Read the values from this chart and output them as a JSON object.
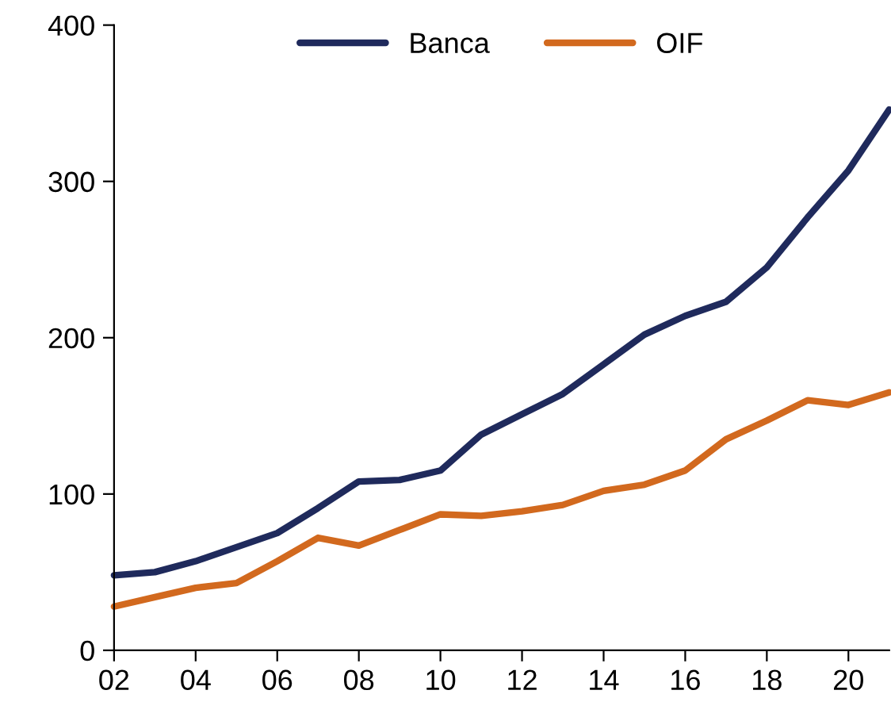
{
  "chart_data": {
    "type": "line",
    "x": [
      2002,
      2003,
      2004,
      2005,
      2006,
      2007,
      2008,
      2009,
      2010,
      2011,
      2012,
      2013,
      2014,
      2015,
      2016,
      2017,
      2018,
      2019,
      2020,
      2021
    ],
    "series": [
      {
        "name": "Banca",
        "color": "#1f2a5c",
        "values": [
          48,
          50,
          57,
          66,
          75,
          91,
          108,
          109,
          115,
          138,
          151,
          164,
          183,
          202,
          214,
          223,
          245,
          277,
          307,
          346
        ]
      },
      {
        "name": "OIF",
        "color": "#d2691e",
        "values": [
          28,
          34,
          40,
          43,
          57,
          72,
          67,
          77,
          87,
          86,
          89,
          93,
          102,
          106,
          115,
          135,
          147,
          160,
          157,
          165
        ]
      }
    ],
    "xlim": [
      2002,
      2021
    ],
    "xticks": [
      {
        "value": 2002,
        "label": "02"
      },
      {
        "value": 2004,
        "label": "04"
      },
      {
        "value": 2006,
        "label": "06"
      },
      {
        "value": 2008,
        "label": "08"
      },
      {
        "value": 2010,
        "label": "10"
      },
      {
        "value": 2012,
        "label": "12"
      },
      {
        "value": 2014,
        "label": "14"
      },
      {
        "value": 2016,
        "label": "16"
      },
      {
        "value": 2018,
        "label": "18"
      },
      {
        "value": 2020,
        "label": "20"
      }
    ],
    "ylim": [
      0,
      400
    ],
    "yticks": [
      0,
      100,
      200,
      300,
      400
    ],
    "legend": "top",
    "grid": false,
    "marker": "none",
    "line_style": "solid"
  }
}
